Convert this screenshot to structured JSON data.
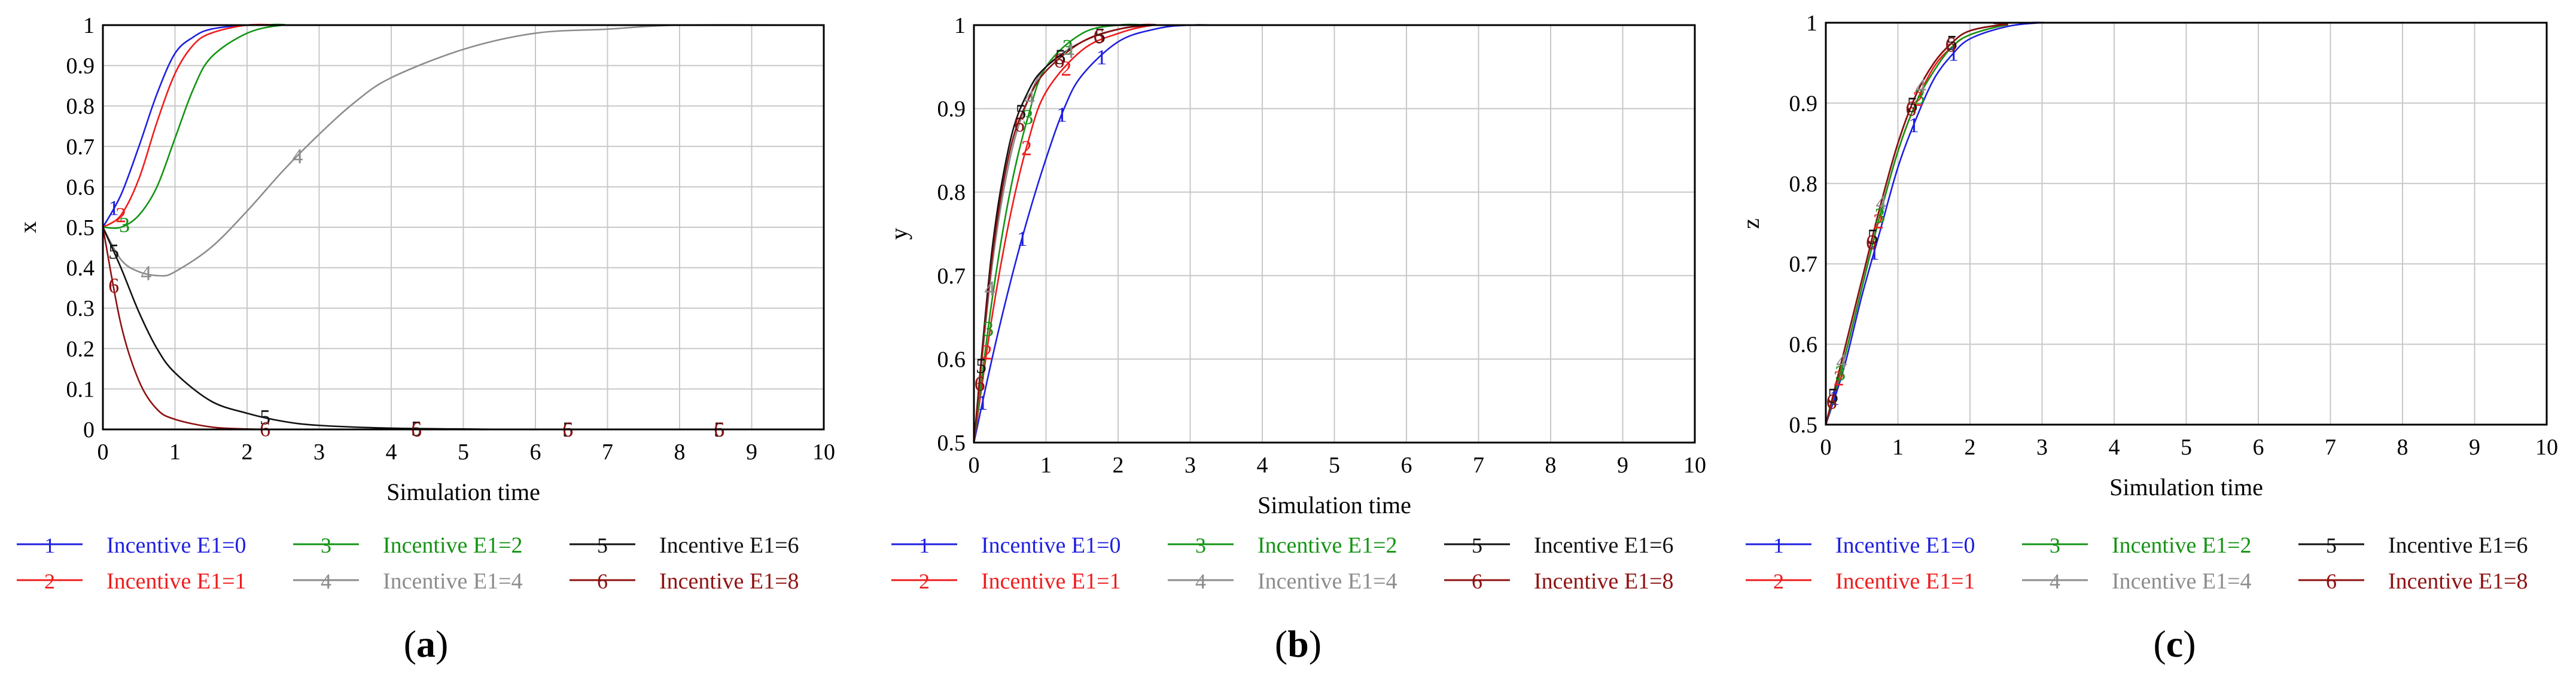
{
  "colors": {
    "s1": "#1f1fe0",
    "s2": "#ef1c1c",
    "s3": "#149414",
    "s4": "#8c8c8c",
    "s5": "#111111",
    "s6": "#8f1111",
    "grid": "#c8c8c8",
    "axis": "#000000"
  },
  "chart_data": [
    {
      "type": "line",
      "panel_label": "(a)",
      "ylabel": "x",
      "xlabel": "Simulation time",
      "xlim": [
        0,
        10
      ],
      "ylim": [
        0,
        1
      ],
      "x_ticks": [
        "0",
        "1",
        "2",
        "3",
        "4",
        "5",
        "6",
        "7",
        "8",
        "9",
        "10"
      ],
      "y_ticks": [
        "0",
        "0.1",
        "0.2",
        "0.3",
        "0.4",
        "0.5",
        "0.6",
        "0.7",
        "0.8",
        "0.9",
        "1"
      ],
      "grid": true,
      "series": [
        {
          "name": "Incentive E1=0",
          "marker": "1",
          "x": [
            0,
            0.25,
            0.5,
            0.75,
            1,
            1.25,
            1.5,
            2,
            2.5,
            3,
            10
          ],
          "values": [
            0.5,
            0.58,
            0.7,
            0.83,
            0.93,
            0.97,
            0.99,
            1,
            1,
            1,
            1
          ]
        },
        {
          "name": "Incentive E1=1",
          "marker": "2",
          "x": [
            0,
            0.25,
            0.5,
            0.75,
            1,
            1.25,
            1.5,
            2,
            2.5,
            3,
            10
          ],
          "values": [
            0.5,
            0.53,
            0.62,
            0.76,
            0.88,
            0.95,
            0.98,
            1,
            1,
            1,
            1
          ]
        },
        {
          "name": "Incentive E1=2",
          "marker": "3",
          "x": [
            0,
            0.25,
            0.5,
            0.75,
            1,
            1.25,
            1.5,
            2,
            2.5,
            3,
            10
          ],
          "values": [
            0.5,
            0.5,
            0.53,
            0.6,
            0.72,
            0.84,
            0.92,
            0.98,
            1,
            1,
            1
          ]
        },
        {
          "name": "Incentive E1=4",
          "marker": "4",
          "x": [
            0,
            0.25,
            0.5,
            0.8,
            1,
            1.5,
            2,
            2.5,
            3,
            3.5,
            4,
            5,
            6,
            7,
            8,
            10
          ],
          "values": [
            0.5,
            0.42,
            0.39,
            0.38,
            0.39,
            0.45,
            0.54,
            0.64,
            0.73,
            0.81,
            0.87,
            0.94,
            0.98,
            0.99,
            1,
            1
          ]
        },
        {
          "name": "Incentive E1=6",
          "marker": "5",
          "x": [
            0,
            0.25,
            0.5,
            0.75,
            1,
            1.5,
            2,
            2.5,
            3,
            4,
            5,
            6,
            10
          ],
          "values": [
            0.5,
            0.4,
            0.29,
            0.2,
            0.14,
            0.07,
            0.04,
            0.02,
            0.01,
            0.003,
            0.001,
            0,
            0
          ]
        },
        {
          "name": "Incentive E1=8",
          "marker": "6",
          "x": [
            0,
            0.25,
            0.5,
            0.75,
            1,
            1.5,
            2,
            2.5,
            3,
            10
          ],
          "values": [
            0.5,
            0.26,
            0.12,
            0.05,
            0.025,
            0.006,
            0.001,
            0,
            0,
            0
          ]
        }
      ]
    },
    {
      "type": "line",
      "panel_label": "(b)",
      "ylabel": "y",
      "xlabel": "Simulation time",
      "xlim": [
        0,
        10
      ],
      "ylim": [
        0.5,
        1
      ],
      "x_ticks": [
        "0",
        "1",
        "2",
        "3",
        "4",
        "5",
        "6",
        "7",
        "8",
        "9",
        "10"
      ],
      "y_ticks": [
        "0.5",
        "0.6",
        "0.7",
        "0.8",
        "0.9",
        "1"
      ],
      "grid": true,
      "series": [
        {
          "name": "Incentive E1=0",
          "marker": "1",
          "x": [
            0,
            0.25,
            0.5,
            0.75,
            1,
            1.25,
            1.5,
            2,
            2.5,
            3,
            4,
            10
          ],
          "values": [
            0.5,
            0.6,
            0.69,
            0.77,
            0.84,
            0.9,
            0.94,
            0.98,
            0.995,
            1,
            1,
            1
          ]
        },
        {
          "name": "Incentive E1=1",
          "marker": "2",
          "x": [
            0,
            0.25,
            0.5,
            0.75,
            1,
            1.5,
            2,
            2.5,
            3,
            10
          ],
          "values": [
            0.5,
            0.65,
            0.77,
            0.86,
            0.92,
            0.97,
            0.99,
            1,
            1,
            1
          ]
        },
        {
          "name": "Incentive E1=2",
          "marker": "3",
          "x": [
            0,
            0.25,
            0.5,
            0.75,
            1,
            1.5,
            2,
            2.5,
            3,
            10
          ],
          "values": [
            0.5,
            0.67,
            0.8,
            0.89,
            0.95,
            0.99,
            1,
            1,
            1,
            1
          ]
        },
        {
          "name": "Incentive E1=4",
          "marker": "4",
          "x": [
            0,
            0.25,
            0.5,
            0.75,
            1,
            1.5,
            2,
            2.5,
            3,
            10
          ],
          "values": [
            0.5,
            0.71,
            0.84,
            0.91,
            0.95,
            0.98,
            0.995,
            1,
            1,
            1
          ]
        },
        {
          "name": "Incentive E1=6",
          "marker": "5",
          "x": [
            0,
            0.25,
            0.5,
            0.75,
            1,
            1.5,
            2,
            2.5,
            3,
            10
          ],
          "values": [
            0.5,
            0.73,
            0.86,
            0.92,
            0.95,
            0.98,
            0.995,
            1,
            1,
            1
          ]
        },
        {
          "name": "Incentive E1=8",
          "marker": "6",
          "x": [
            0,
            0.25,
            0.5,
            0.75,
            1,
            1.5,
            2,
            2.5,
            3,
            10
          ],
          "values": [
            0.5,
            0.72,
            0.85,
            0.91,
            0.945,
            0.98,
            0.995,
            1,
            1,
            1
          ]
        }
      ]
    },
    {
      "type": "line",
      "panel_label": "(c)",
      "ylabel": "z",
      "xlabel": "Simulation time",
      "xlim": [
        0,
        10
      ],
      "ylim": [
        0.5,
        1
      ],
      "x_ticks": [
        "0",
        "1",
        "2",
        "3",
        "4",
        "5",
        "6",
        "7",
        "8",
        "9",
        "10"
      ],
      "y_ticks": [
        "0.5",
        "0.6",
        "0.7",
        "0.8",
        "0.9",
        "1"
      ],
      "grid": true,
      "series": [
        {
          "name": "Incentive E1=0",
          "marker": "1",
          "x": [
            0,
            0.25,
            0.5,
            0.75,
            1,
            1.25,
            1.5,
            1.75,
            2,
            2.5,
            3,
            3.5,
            10
          ],
          "values": [
            0.5,
            0.57,
            0.66,
            0.74,
            0.82,
            0.88,
            0.93,
            0.96,
            0.98,
            0.995,
            1,
            1,
            1
          ]
        },
        {
          "name": "Incentive E1=1",
          "marker": "2",
          "x": [
            0,
            0.25,
            0.5,
            0.75,
            1,
            1.25,
            1.5,
            1.75,
            2,
            2.5,
            3,
            10
          ],
          "values": [
            0.5,
            0.58,
            0.67,
            0.76,
            0.84,
            0.9,
            0.945,
            0.97,
            0.985,
            0.997,
            1,
            1
          ]
        },
        {
          "name": "Incentive E1=2",
          "marker": "3",
          "x": [
            0,
            0.25,
            0.5,
            0.75,
            1,
            1.25,
            1.5,
            1.75,
            2,
            2.5,
            3,
            10
          ],
          "values": [
            0.5,
            0.58,
            0.67,
            0.76,
            0.84,
            0.9,
            0.94,
            0.97,
            0.985,
            0.997,
            1,
            1
          ]
        },
        {
          "name": "Incentive E1=4",
          "marker": "4",
          "x": [
            0,
            0.25,
            0.5,
            0.75,
            1,
            1.25,
            1.5,
            1.75,
            2,
            2.5,
            3,
            10
          ],
          "values": [
            0.5,
            0.59,
            0.68,
            0.77,
            0.85,
            0.91,
            0.95,
            0.975,
            0.99,
            0.998,
            1,
            1
          ]
        },
        {
          "name": "Incentive E1=6",
          "marker": "5",
          "x": [
            0,
            0.25,
            0.5,
            0.75,
            1,
            1.25,
            1.5,
            1.75,
            2,
            2.5,
            3,
            10
          ],
          "values": [
            0.5,
            0.59,
            0.68,
            0.77,
            0.85,
            0.91,
            0.95,
            0.975,
            0.99,
            0.998,
            1,
            1
          ]
        },
        {
          "name": "Incentive E1=8",
          "marker": "6",
          "x": [
            0,
            0.25,
            0.5,
            0.75,
            1,
            1.25,
            1.5,
            1.75,
            2,
            2.5,
            3,
            10
          ],
          "values": [
            0.5,
            0.59,
            0.68,
            0.77,
            0.85,
            0.91,
            0.95,
            0.975,
            0.99,
            0.998,
            1,
            1
          ]
        }
      ]
    }
  ]
}
